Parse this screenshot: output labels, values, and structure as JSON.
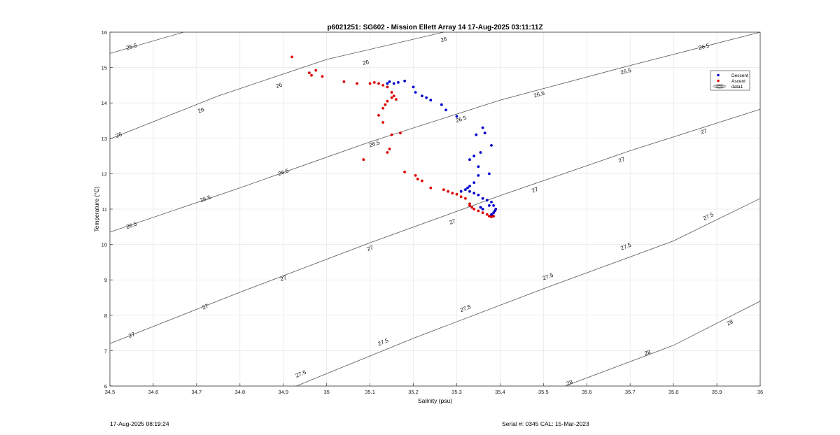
{
  "footer": {
    "timestamp": "17-Aug-2025 08:19:24",
    "serial": "Serial #: 0345  CAL: 15-Mar-2023"
  },
  "colors": {
    "descent": "#0000cc",
    "ascent": "#dd0000",
    "contour": "#555555",
    "grid": "#e6e6e6"
  },
  "chart_data": {
    "type": "scatter",
    "title": "p6021251: SG602 - Mission Ellett Array 14 17-Aug-2025 03:11:11Z",
    "xlabel": "Salinity (psu)",
    "ylabel": "Temperature (°C)",
    "xlim": [
      34.5,
      36
    ],
    "ylim": [
      6,
      16
    ],
    "xticks": [
      "34.5",
      "34.6",
      "34.7",
      "34.8",
      "34.9",
      "35",
      "35.1",
      "35.2",
      "35.3",
      "35.4",
      "35.5",
      "35.6",
      "35.7",
      "35.8",
      "35.9",
      "36"
    ],
    "yticks": [
      "6",
      "7",
      "8",
      "9",
      "10",
      "11",
      "12",
      "13",
      "14",
      "15",
      "16"
    ],
    "grid": true,
    "legend": {
      "position": "top-right",
      "entries": [
        "Descent",
        "Ascent",
        "data1"
      ]
    },
    "contours": [
      {
        "level": "25.5",
        "points": [
          [
            34.5,
            15.4
          ],
          [
            34.67,
            16.0
          ]
        ]
      },
      {
        "level": "26",
        "points": [
          [
            34.5,
            12.98
          ],
          [
            34.75,
            14.2
          ],
          [
            35.0,
            15.23
          ],
          [
            35.27,
            16.0
          ]
        ]
      },
      {
        "level": "26.5",
        "points": [
          [
            34.5,
            10.35
          ],
          [
            34.8,
            11.6
          ],
          [
            35.1,
            12.9
          ],
          [
            35.4,
            14.08
          ],
          [
            35.7,
            15.06
          ],
          [
            36.0,
            16.0
          ]
        ]
      },
      {
        "level": "27",
        "points": [
          [
            34.5,
            7.2
          ],
          [
            34.8,
            8.65
          ],
          [
            35.1,
            10.05
          ],
          [
            35.4,
            11.38
          ],
          [
            35.7,
            12.65
          ],
          [
            36.0,
            13.82
          ]
        ]
      },
      {
        "level": "27.5",
        "points": [
          [
            34.93,
            6.0
          ],
          [
            35.2,
            7.35
          ],
          [
            35.5,
            8.75
          ],
          [
            35.8,
            10.1
          ],
          [
            36.0,
            11.3
          ]
        ]
      },
      {
        "level": "28",
        "points": [
          [
            35.55,
            6.0
          ],
          [
            35.8,
            7.15
          ],
          [
            36.0,
            8.4
          ]
        ]
      }
    ],
    "contour_labels": [
      {
        "text": "25.5",
        "x": 34.55,
        "y": 15.6
      },
      {
        "text": "26",
        "x": 34.52,
        "y": 13.1
      },
      {
        "text": "26",
        "x": 34.71,
        "y": 13.8
      },
      {
        "text": "26",
        "x": 34.89,
        "y": 14.5
      },
      {
        "text": "26",
        "x": 35.09,
        "y": 15.15
      },
      {
        "text": "26",
        "x": 35.27,
        "y": 15.8
      },
      {
        "text": "26.5",
        "x": 34.55,
        "y": 10.55
      },
      {
        "text": "26.5",
        "x": 34.72,
        "y": 11.3
      },
      {
        "text": "26.5",
        "x": 34.9,
        "y": 12.05
      },
      {
        "text": "26.5",
        "x": 35.11,
        "y": 12.85
      },
      {
        "text": "26.5",
        "x": 35.31,
        "y": 13.55
      },
      {
        "text": "26.5",
        "x": 35.49,
        "y": 14.25
      },
      {
        "text": "26.5",
        "x": 35.69,
        "y": 14.9
      },
      {
        "text": "26.5",
        "x": 35.87,
        "y": 15.6
      },
      {
        "text": "27",
        "x": 34.55,
        "y": 7.45
      },
      {
        "text": "27",
        "x": 34.72,
        "y": 8.25
      },
      {
        "text": "27",
        "x": 34.9,
        "y": 9.05
      },
      {
        "text": "27",
        "x": 35.1,
        "y": 9.9
      },
      {
        "text": "27",
        "x": 35.29,
        "y": 10.65
      },
      {
        "text": "27",
        "x": 35.48,
        "y": 11.55
      },
      {
        "text": "27",
        "x": 35.68,
        "y": 12.4
      },
      {
        "text": "27",
        "x": 35.87,
        "y": 13.2
      },
      {
        "text": "27.5",
        "x": 34.94,
        "y": 6.35
      },
      {
        "text": "27.5",
        "x": 35.13,
        "y": 7.25
      },
      {
        "text": "27.5",
        "x": 35.32,
        "y": 8.2
      },
      {
        "text": "27.5",
        "x": 35.51,
        "y": 9.1
      },
      {
        "text": "27.5",
        "x": 35.69,
        "y": 9.95
      },
      {
        "text": "27.5",
        "x": 35.88,
        "y": 10.8
      },
      {
        "text": "28",
        "x": 35.56,
        "y": 6.1
      },
      {
        "text": "28",
        "x": 35.74,
        "y": 6.95
      },
      {
        "text": "28",
        "x": 35.93,
        "y": 7.8
      }
    ],
    "series": [
      {
        "name": "Descent",
        "color": "#0000cc",
        "points": [
          [
            35.14,
            14.55
          ],
          [
            35.145,
            14.6
          ],
          [
            35.155,
            14.55
          ],
          [
            35.165,
            14.58
          ],
          [
            35.18,
            14.62
          ],
          [
            35.2,
            14.45
          ],
          [
            35.205,
            14.3
          ],
          [
            35.22,
            14.2
          ],
          [
            35.23,
            14.15
          ],
          [
            35.24,
            14.08
          ],
          [
            35.265,
            13.95
          ],
          [
            35.275,
            13.8
          ],
          [
            35.3,
            13.62
          ],
          [
            35.33,
            12.4
          ],
          [
            35.34,
            12.5
          ],
          [
            35.345,
            13.1
          ],
          [
            35.355,
            12.6
          ],
          [
            35.35,
            12.2
          ],
          [
            35.36,
            13.3
          ],
          [
            35.365,
            13.15
          ],
          [
            35.375,
            12.0
          ],
          [
            35.38,
            12.8
          ],
          [
            35.35,
            11.95
          ],
          [
            35.34,
            11.75
          ],
          [
            35.33,
            11.65
          ],
          [
            35.32,
            11.55
          ],
          [
            35.31,
            11.5
          ],
          [
            35.325,
            11.6
          ],
          [
            35.33,
            11.5
          ],
          [
            35.34,
            11.45
          ],
          [
            35.35,
            11.4
          ],
          [
            35.36,
            11.3
          ],
          [
            35.37,
            11.25
          ],
          [
            35.375,
            11.1
          ],
          [
            35.38,
            11.2
          ],
          [
            35.385,
            11.1
          ],
          [
            35.39,
            11.0
          ],
          [
            35.385,
            10.9
          ],
          [
            35.38,
            10.85
          ],
          [
            35.378,
            10.8
          ],
          [
            35.383,
            10.82
          ],
          [
            35.388,
            10.95
          ],
          [
            35.36,
            11.0
          ],
          [
            35.355,
            11.05
          ]
        ]
      },
      {
        "name": "Ascent",
        "color": "#dd0000",
        "points": [
          [
            34.92,
            15.3
          ],
          [
            34.96,
            14.85
          ],
          [
            34.965,
            14.78
          ],
          [
            34.975,
            14.92
          ],
          [
            34.99,
            14.75
          ],
          [
            35.04,
            14.6
          ],
          [
            35.07,
            14.55
          ],
          [
            35.1,
            14.55
          ],
          [
            35.11,
            14.58
          ],
          [
            35.12,
            14.55
          ],
          [
            35.13,
            14.5
          ],
          [
            35.14,
            14.45
          ],
          [
            35.15,
            14.3
          ],
          [
            35.155,
            14.2
          ],
          [
            35.16,
            14.1
          ],
          [
            35.15,
            14.15
          ],
          [
            35.14,
            14.05
          ],
          [
            35.135,
            13.95
          ],
          [
            35.13,
            13.85
          ],
          [
            35.12,
            13.65
          ],
          [
            35.13,
            13.45
          ],
          [
            35.15,
            13.1
          ],
          [
            35.145,
            12.7
          ],
          [
            35.14,
            12.6
          ],
          [
            35.085,
            12.4
          ],
          [
            35.17,
            13.15
          ],
          [
            35.18,
            12.05
          ],
          [
            35.205,
            11.95
          ],
          [
            35.21,
            11.85
          ],
          [
            35.22,
            11.8
          ],
          [
            35.24,
            11.6
          ],
          [
            35.27,
            11.55
          ],
          [
            35.28,
            11.5
          ],
          [
            35.29,
            11.45
          ],
          [
            35.3,
            11.42
          ],
          [
            35.31,
            11.35
          ],
          [
            35.32,
            11.3
          ],
          [
            35.33,
            11.15
          ],
          [
            35.33,
            11.1
          ],
          [
            35.335,
            11.05
          ],
          [
            35.34,
            11.0
          ],
          [
            35.35,
            10.95
          ],
          [
            35.36,
            10.9
          ],
          [
            35.37,
            10.85
          ],
          [
            35.375,
            10.8
          ],
          [
            35.38,
            10.78
          ],
          [
            35.385,
            10.8
          ]
        ]
      }
    ]
  }
}
